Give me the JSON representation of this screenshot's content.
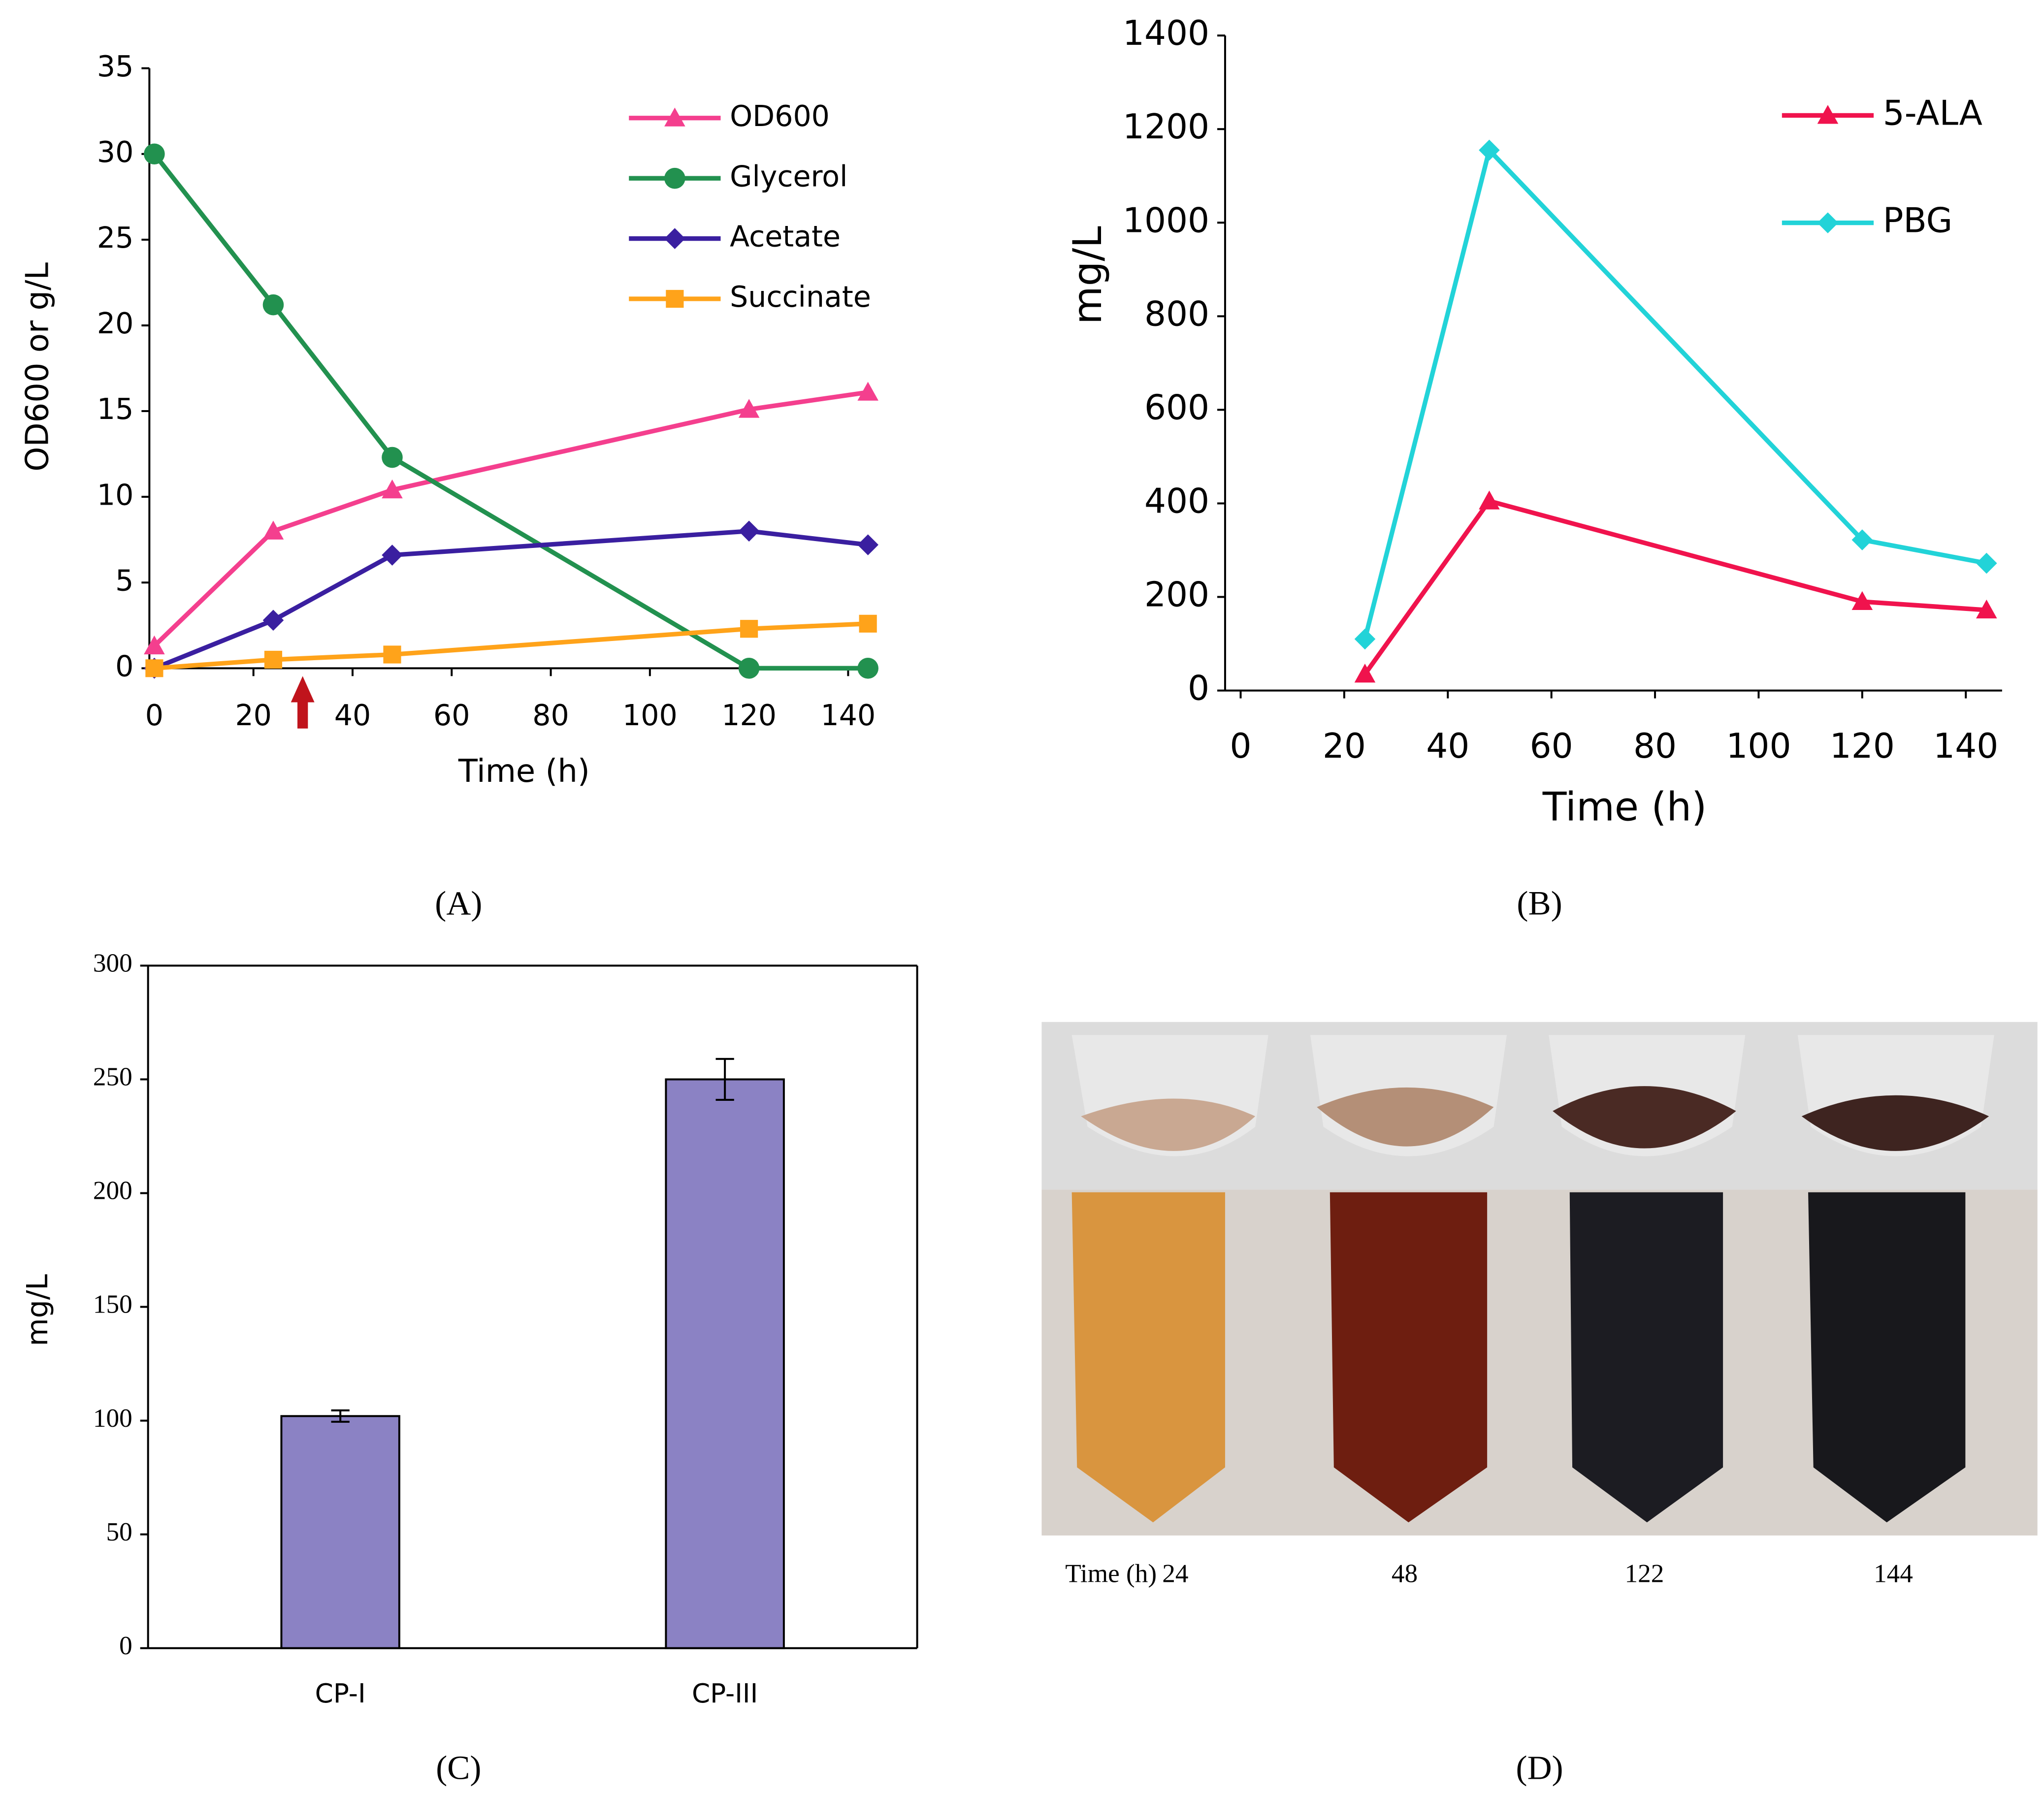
{
  "chart_data": [
    {
      "type": "line",
      "caption": "(A)",
      "xlabel": "Time (h)",
      "ylabel": "OD600 or g/L",
      "x": [
        0,
        24,
        48,
        120,
        144
      ],
      "xlim": [
        -1,
        146
      ],
      "xticks": [
        0,
        20,
        40,
        60,
        80,
        100,
        120,
        140
      ],
      "ylim": [
        0,
        35
      ],
      "yticks": [
        0,
        5,
        10,
        15,
        20,
        25,
        30,
        35
      ],
      "grid": false,
      "legend": "upper right",
      "series": [
        {
          "name": "OD600",
          "color": "#f43f8e",
          "marker": "triangle",
          "values": [
            1.3,
            8,
            10.4,
            15.1,
            16.1
          ]
        },
        {
          "name": "Glycerol",
          "color": "#22914f",
          "marker": "circle",
          "values": [
            30,
            21.2,
            12.3,
            0,
            0
          ]
        },
        {
          "name": "Acetate",
          "color": "#3a1fa0",
          "marker": "diamond",
          "values": [
            0,
            2.8,
            6.6,
            8,
            7.2
          ]
        },
        {
          "name": "Succinate",
          "color": "#ffa31a",
          "marker": "square",
          "values": [
            0,
            0.5,
            0.8,
            2.3,
            2.6
          ]
        }
      ]
    },
    {
      "type": "line",
      "caption": "(B)",
      "xlabel": "Time (h)",
      "ylabel": "mg/L",
      "x": [
        24,
        48,
        120,
        144
      ],
      "xlim": [
        -3,
        147
      ],
      "xticks": [
        0,
        20,
        40,
        60,
        80,
        100,
        120,
        140
      ],
      "ylim": [
        0,
        1400
      ],
      "yticks": [
        0,
        200,
        400,
        600,
        800,
        1000,
        1200,
        1400
      ],
      "grid": false,
      "legend": "upper right",
      "series": [
        {
          "name": "5-ALA",
          "color": "#f0134d",
          "marker": "triangle",
          "values": [
            35,
            405,
            190,
            172
          ]
        },
        {
          "name": "PBG",
          "color": "#22d3d8",
          "marker": "diamond",
          "values": [
            110,
            1155,
            322,
            272
          ]
        }
      ]
    },
    {
      "type": "bar",
      "caption": "(C)",
      "ylabel": "mg/L",
      "categories": [
        "CP-I",
        "CP-III"
      ],
      "values": [
        102,
        250
      ],
      "errors": [
        2.5,
        9
      ],
      "color": "#8b82c4",
      "ylim": [
        0,
        300
      ],
      "yticks": [
        0,
        50,
        100,
        150,
        200,
        250,
        300
      ],
      "grid": false
    }
  ],
  "photo": {
    "caption": "(D)",
    "label": "Time (h)",
    "times": [
      "24",
      "48",
      "122",
      "144"
    ]
  }
}
